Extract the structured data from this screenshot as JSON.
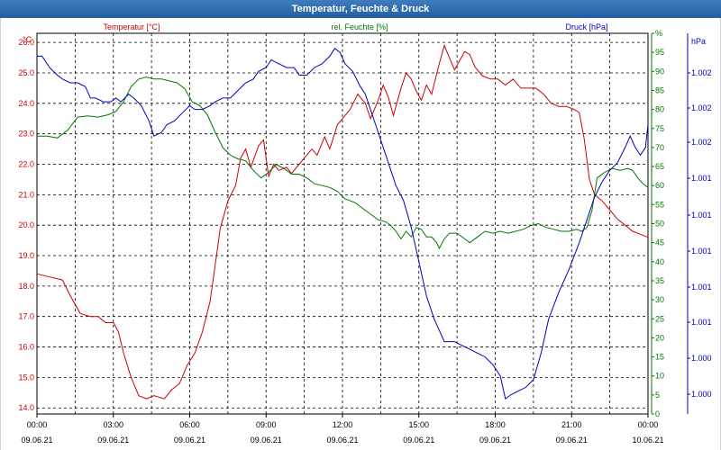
{
  "window": {
    "title": "Temperatur, Feuchte & Druck"
  },
  "colors": {
    "temperature": "#cc0000",
    "humidity": "#007700",
    "pressure": "#0000bb",
    "grid": "#000000",
    "title_bg": "#2d6aad"
  },
  "chart_data": {
    "type": "line",
    "x_ticks": [
      {
        "time": "00:00",
        "date": "09.06.21"
      },
      {
        "time": "03:00",
        "date": "09.06.21"
      },
      {
        "time": "06:00",
        "date": "09.06.21"
      },
      {
        "time": "09:00",
        "date": "09.06.21"
      },
      {
        "time": "12:00",
        "date": "09.06.21"
      },
      {
        "time": "15:00",
        "date": "09.06.21"
      },
      {
        "time": "18:00",
        "date": "09.06.21"
      },
      {
        "time": "21:00",
        "date": "09.06.21"
      },
      {
        "time": "00:00",
        "date": "10.06.21"
      }
    ],
    "x_range_hours": [
      0,
      24
    ],
    "grid": true,
    "series": [
      {
        "name": "Temperatur [°C]",
        "axis": "left",
        "unit": "°C",
        "ylim": [
          13.8,
          26.3
        ],
        "ticks": [
          "26.0",
          "25.0",
          "24.0",
          "23.0",
          "22.0",
          "21.0",
          "20.0",
          "19.0",
          "18.0",
          "17.0",
          "16.0",
          "15.0",
          "14.0"
        ],
        "points": [
          [
            0.0,
            18.4
          ],
          [
            0.5,
            18.3
          ],
          [
            1.0,
            18.2
          ],
          [
            1.3,
            17.7
          ],
          [
            1.7,
            17.1
          ],
          [
            2.1,
            17.0
          ],
          [
            2.4,
            17.0
          ],
          [
            2.7,
            16.8
          ],
          [
            3.0,
            16.8
          ],
          [
            3.2,
            16.5
          ],
          [
            3.4,
            15.8
          ],
          [
            3.7,
            15.0
          ],
          [
            4.0,
            14.4
          ],
          [
            4.3,
            14.3
          ],
          [
            4.6,
            14.4
          ],
          [
            5.0,
            14.3
          ],
          [
            5.3,
            14.6
          ],
          [
            5.6,
            14.8
          ],
          [
            5.9,
            15.4
          ],
          [
            6.2,
            15.8
          ],
          [
            6.5,
            16.5
          ],
          [
            6.8,
            17.5
          ],
          [
            7.0,
            18.7
          ],
          [
            7.2,
            19.9
          ],
          [
            7.5,
            20.8
          ],
          [
            7.8,
            21.3
          ],
          [
            8.0,
            22.2
          ],
          [
            8.2,
            22.5
          ],
          [
            8.4,
            21.9
          ],
          [
            8.7,
            22.6
          ],
          [
            8.9,
            22.8
          ],
          [
            9.1,
            21.6
          ],
          [
            9.3,
            22.0
          ],
          [
            9.5,
            21.8
          ],
          [
            9.8,
            21.9
          ],
          [
            10.0,
            21.7
          ],
          [
            10.3,
            22.0
          ],
          [
            10.5,
            22.2
          ],
          [
            10.8,
            22.5
          ],
          [
            11.0,
            22.3
          ],
          [
            11.3,
            22.9
          ],
          [
            11.5,
            22.5
          ],
          [
            11.8,
            23.3
          ],
          [
            12.1,
            23.6
          ],
          [
            12.3,
            23.8
          ],
          [
            12.6,
            24.3
          ],
          [
            12.9,
            24.0
          ],
          [
            13.1,
            23.5
          ],
          [
            13.4,
            24.1
          ],
          [
            13.6,
            24.6
          ],
          [
            13.8,
            24.2
          ],
          [
            14.0,
            23.6
          ],
          [
            14.3,
            24.5
          ],
          [
            14.5,
            25.0
          ],
          [
            14.7,
            24.8
          ],
          [
            14.9,
            24.4
          ],
          [
            15.1,
            24.1
          ],
          [
            15.3,
            24.6
          ],
          [
            15.5,
            24.3
          ],
          [
            15.8,
            25.3
          ],
          [
            16.0,
            25.9
          ],
          [
            16.2,
            25.5
          ],
          [
            16.4,
            25.1
          ],
          [
            16.6,
            25.4
          ],
          [
            16.8,
            25.7
          ],
          [
            17.0,
            25.6
          ],
          [
            17.2,
            25.2
          ],
          [
            17.5,
            24.9
          ],
          [
            17.8,
            24.8
          ],
          [
            18.1,
            24.8
          ],
          [
            18.4,
            24.6
          ],
          [
            18.7,
            24.8
          ],
          [
            19.0,
            24.5
          ],
          [
            19.3,
            24.5
          ],
          [
            19.6,
            24.5
          ],
          [
            19.9,
            24.3
          ],
          [
            20.2,
            24.0
          ],
          [
            20.5,
            23.9
          ],
          [
            20.8,
            23.9
          ],
          [
            21.1,
            23.8
          ],
          [
            21.3,
            23.7
          ],
          [
            21.5,
            22.8
          ],
          [
            21.7,
            21.5
          ],
          [
            21.9,
            21.0
          ],
          [
            22.2,
            20.8
          ],
          [
            22.5,
            20.5
          ],
          [
            22.8,
            20.2
          ],
          [
            23.1,
            20.0
          ],
          [
            23.4,
            19.8
          ],
          [
            23.7,
            19.7
          ],
          [
            24.0,
            19.6
          ]
        ]
      },
      {
        "name": "rel. Feuchte [%]",
        "axis": "right1",
        "unit": "%",
        "ylim": [
          0,
          100
        ],
        "ticks": [
          "%",
          "95",
          "90",
          "85",
          "80",
          "75",
          "70",
          "65",
          "60",
          "55",
          "50",
          "45",
          "40",
          "35",
          "30",
          "25",
          "20",
          "15",
          "10",
          "5",
          "0"
        ],
        "points": [
          [
            0.0,
            73
          ],
          [
            0.4,
            73
          ],
          [
            0.8,
            72.5
          ],
          [
            1.2,
            74.5
          ],
          [
            1.6,
            78.0
          ],
          [
            2.0,
            78.3
          ],
          [
            2.4,
            78.0
          ],
          [
            2.8,
            78.6
          ],
          [
            3.1,
            79.5
          ],
          [
            3.4,
            82.0
          ],
          [
            3.7,
            86.0
          ],
          [
            4.0,
            88.0
          ],
          [
            4.3,
            88.5
          ],
          [
            4.6,
            88.0
          ],
          [
            4.9,
            88.0
          ],
          [
            5.2,
            87.5
          ],
          [
            5.5,
            87.0
          ],
          [
            5.8,
            85.5
          ],
          [
            6.1,
            82.0
          ],
          [
            6.4,
            81.0
          ],
          [
            6.7,
            78.5
          ],
          [
            7.0,
            74.0
          ],
          [
            7.3,
            70.0
          ],
          [
            7.6,
            68.0
          ],
          [
            7.9,
            67.0
          ],
          [
            8.2,
            66.5
          ],
          [
            8.5,
            64.0
          ],
          [
            8.8,
            62.0
          ],
          [
            9.1,
            63.5
          ],
          [
            9.4,
            65.5
          ],
          [
            9.7,
            64.5
          ],
          [
            10.0,
            63.0
          ],
          [
            10.3,
            63.0
          ],
          [
            10.6,
            62.0
          ],
          [
            10.9,
            60.5
          ],
          [
            11.2,
            60.0
          ],
          [
            11.5,
            59.5
          ],
          [
            11.8,
            58.5
          ],
          [
            12.1,
            56.5
          ],
          [
            12.5,
            55.5
          ],
          [
            12.8,
            54.0
          ],
          [
            13.1,
            52.5
          ],
          [
            13.4,
            51.0
          ],
          [
            13.7,
            50.5
          ],
          [
            13.9,
            49.5
          ],
          [
            14.1,
            48.0
          ],
          [
            14.3,
            46.0
          ],
          [
            14.5,
            48.0
          ],
          [
            14.7,
            46.5
          ],
          [
            14.9,
            49.0
          ],
          [
            15.1,
            48.5
          ],
          [
            15.3,
            46.5
          ],
          [
            15.5,
            46.5
          ],
          [
            15.7,
            45.0
          ],
          [
            15.8,
            43.5
          ],
          [
            16.0,
            46.0
          ],
          [
            16.2,
            47.5
          ],
          [
            16.5,
            47.5
          ],
          [
            16.8,
            46.0
          ],
          [
            17.0,
            45.0
          ],
          [
            17.3,
            46.5
          ],
          [
            17.6,
            48.0
          ],
          [
            17.9,
            47.5
          ],
          [
            18.2,
            48.0
          ],
          [
            18.5,
            47.5
          ],
          [
            18.8,
            48.0
          ],
          [
            19.1,
            48.5
          ],
          [
            19.4,
            49.5
          ],
          [
            19.7,
            50.0
          ],
          [
            20.0,
            49.0
          ],
          [
            20.3,
            48.5
          ],
          [
            20.6,
            48.0
          ],
          [
            20.9,
            48.0
          ],
          [
            21.2,
            48.5
          ],
          [
            21.4,
            48.0
          ],
          [
            21.6,
            49.0
          ],
          [
            21.8,
            53.5
          ],
          [
            22.0,
            62.0
          ],
          [
            22.3,
            63.5
          ],
          [
            22.6,
            64.5
          ],
          [
            22.9,
            64.0
          ],
          [
            23.2,
            64.5
          ],
          [
            23.4,
            64.0
          ],
          [
            23.6,
            62.0
          ],
          [
            23.8,
            60.5
          ],
          [
            24.0,
            59.5
          ]
        ]
      },
      {
        "name": "Druck [hPa]",
        "axis": "right2",
        "unit": "hPa",
        "ticks": [
          "hPa",
          "1.002",
          "1.002",
          "1.002",
          "1.001",
          "1.001",
          "1.001",
          "1.001",
          "1.001",
          "1.000",
          "1.000"
        ],
        "points_normalized": [
          [
            0.0,
            0.94
          ],
          [
            0.2,
            0.94
          ],
          [
            0.5,
            0.91
          ],
          [
            0.8,
            0.89
          ],
          [
            1.0,
            0.88
          ],
          [
            1.3,
            0.87
          ],
          [
            1.6,
            0.87
          ],
          [
            1.9,
            0.86
          ],
          [
            2.1,
            0.83
          ],
          [
            2.3,
            0.83
          ],
          [
            2.6,
            0.82
          ],
          [
            2.9,
            0.82
          ],
          [
            3.1,
            0.83
          ],
          [
            3.3,
            0.82
          ],
          [
            3.6,
            0.84
          ],
          [
            3.8,
            0.83
          ],
          [
            4.1,
            0.81
          ],
          [
            4.4,
            0.77
          ],
          [
            4.6,
            0.73
          ],
          [
            4.9,
            0.74
          ],
          [
            5.1,
            0.76
          ],
          [
            5.4,
            0.77
          ],
          [
            5.7,
            0.79
          ],
          [
            6.0,
            0.81
          ],
          [
            6.2,
            0.8
          ],
          [
            6.5,
            0.8
          ],
          [
            6.8,
            0.81
          ],
          [
            7.0,
            0.82
          ],
          [
            7.3,
            0.83
          ],
          [
            7.6,
            0.83
          ],
          [
            7.9,
            0.85
          ],
          [
            8.2,
            0.87
          ],
          [
            8.5,
            0.88
          ],
          [
            8.7,
            0.9
          ],
          [
            9.0,
            0.91
          ],
          [
            9.2,
            0.93
          ],
          [
            9.5,
            0.92
          ],
          [
            9.8,
            0.91
          ],
          [
            10.1,
            0.91
          ],
          [
            10.3,
            0.89
          ],
          [
            10.6,
            0.89
          ],
          [
            10.9,
            0.91
          ],
          [
            11.2,
            0.92
          ],
          [
            11.5,
            0.94
          ],
          [
            11.7,
            0.96
          ],
          [
            11.9,
            0.95
          ],
          [
            12.1,
            0.92
          ],
          [
            12.4,
            0.9
          ],
          [
            12.7,
            0.86
          ],
          [
            12.9,
            0.84
          ],
          [
            13.2,
            0.78
          ],
          [
            13.5,
            0.72
          ],
          [
            13.8,
            0.66
          ],
          [
            14.1,
            0.6
          ],
          [
            14.4,
            0.56
          ],
          [
            14.7,
            0.49
          ],
          [
            15.0,
            0.4
          ],
          [
            15.3,
            0.31
          ],
          [
            15.6,
            0.25
          ],
          [
            15.8,
            0.22
          ],
          [
            16.0,
            0.19
          ],
          [
            16.4,
            0.19
          ],
          [
            16.7,
            0.18
          ],
          [
            17.0,
            0.17
          ],
          [
            17.3,
            0.16
          ],
          [
            17.6,
            0.15
          ],
          [
            17.9,
            0.13
          ],
          [
            18.2,
            0.1
          ],
          [
            18.4,
            0.04
          ],
          [
            18.6,
            0.05
          ],
          [
            18.9,
            0.06
          ],
          [
            19.2,
            0.07
          ],
          [
            19.5,
            0.09
          ],
          [
            19.8,
            0.16
          ],
          [
            20.1,
            0.25
          ],
          [
            20.5,
            0.32
          ],
          [
            20.9,
            0.38
          ],
          [
            21.3,
            0.45
          ],
          [
            21.6,
            0.51
          ],
          [
            21.9,
            0.57
          ],
          [
            22.2,
            0.61
          ],
          [
            22.5,
            0.64
          ],
          [
            22.8,
            0.66
          ],
          [
            23.1,
            0.7
          ],
          [
            23.3,
            0.73
          ],
          [
            23.5,
            0.7
          ],
          [
            23.7,
            0.68
          ],
          [
            23.9,
            0.7
          ],
          [
            24.0,
            0.76
          ]
        ]
      }
    ]
  }
}
